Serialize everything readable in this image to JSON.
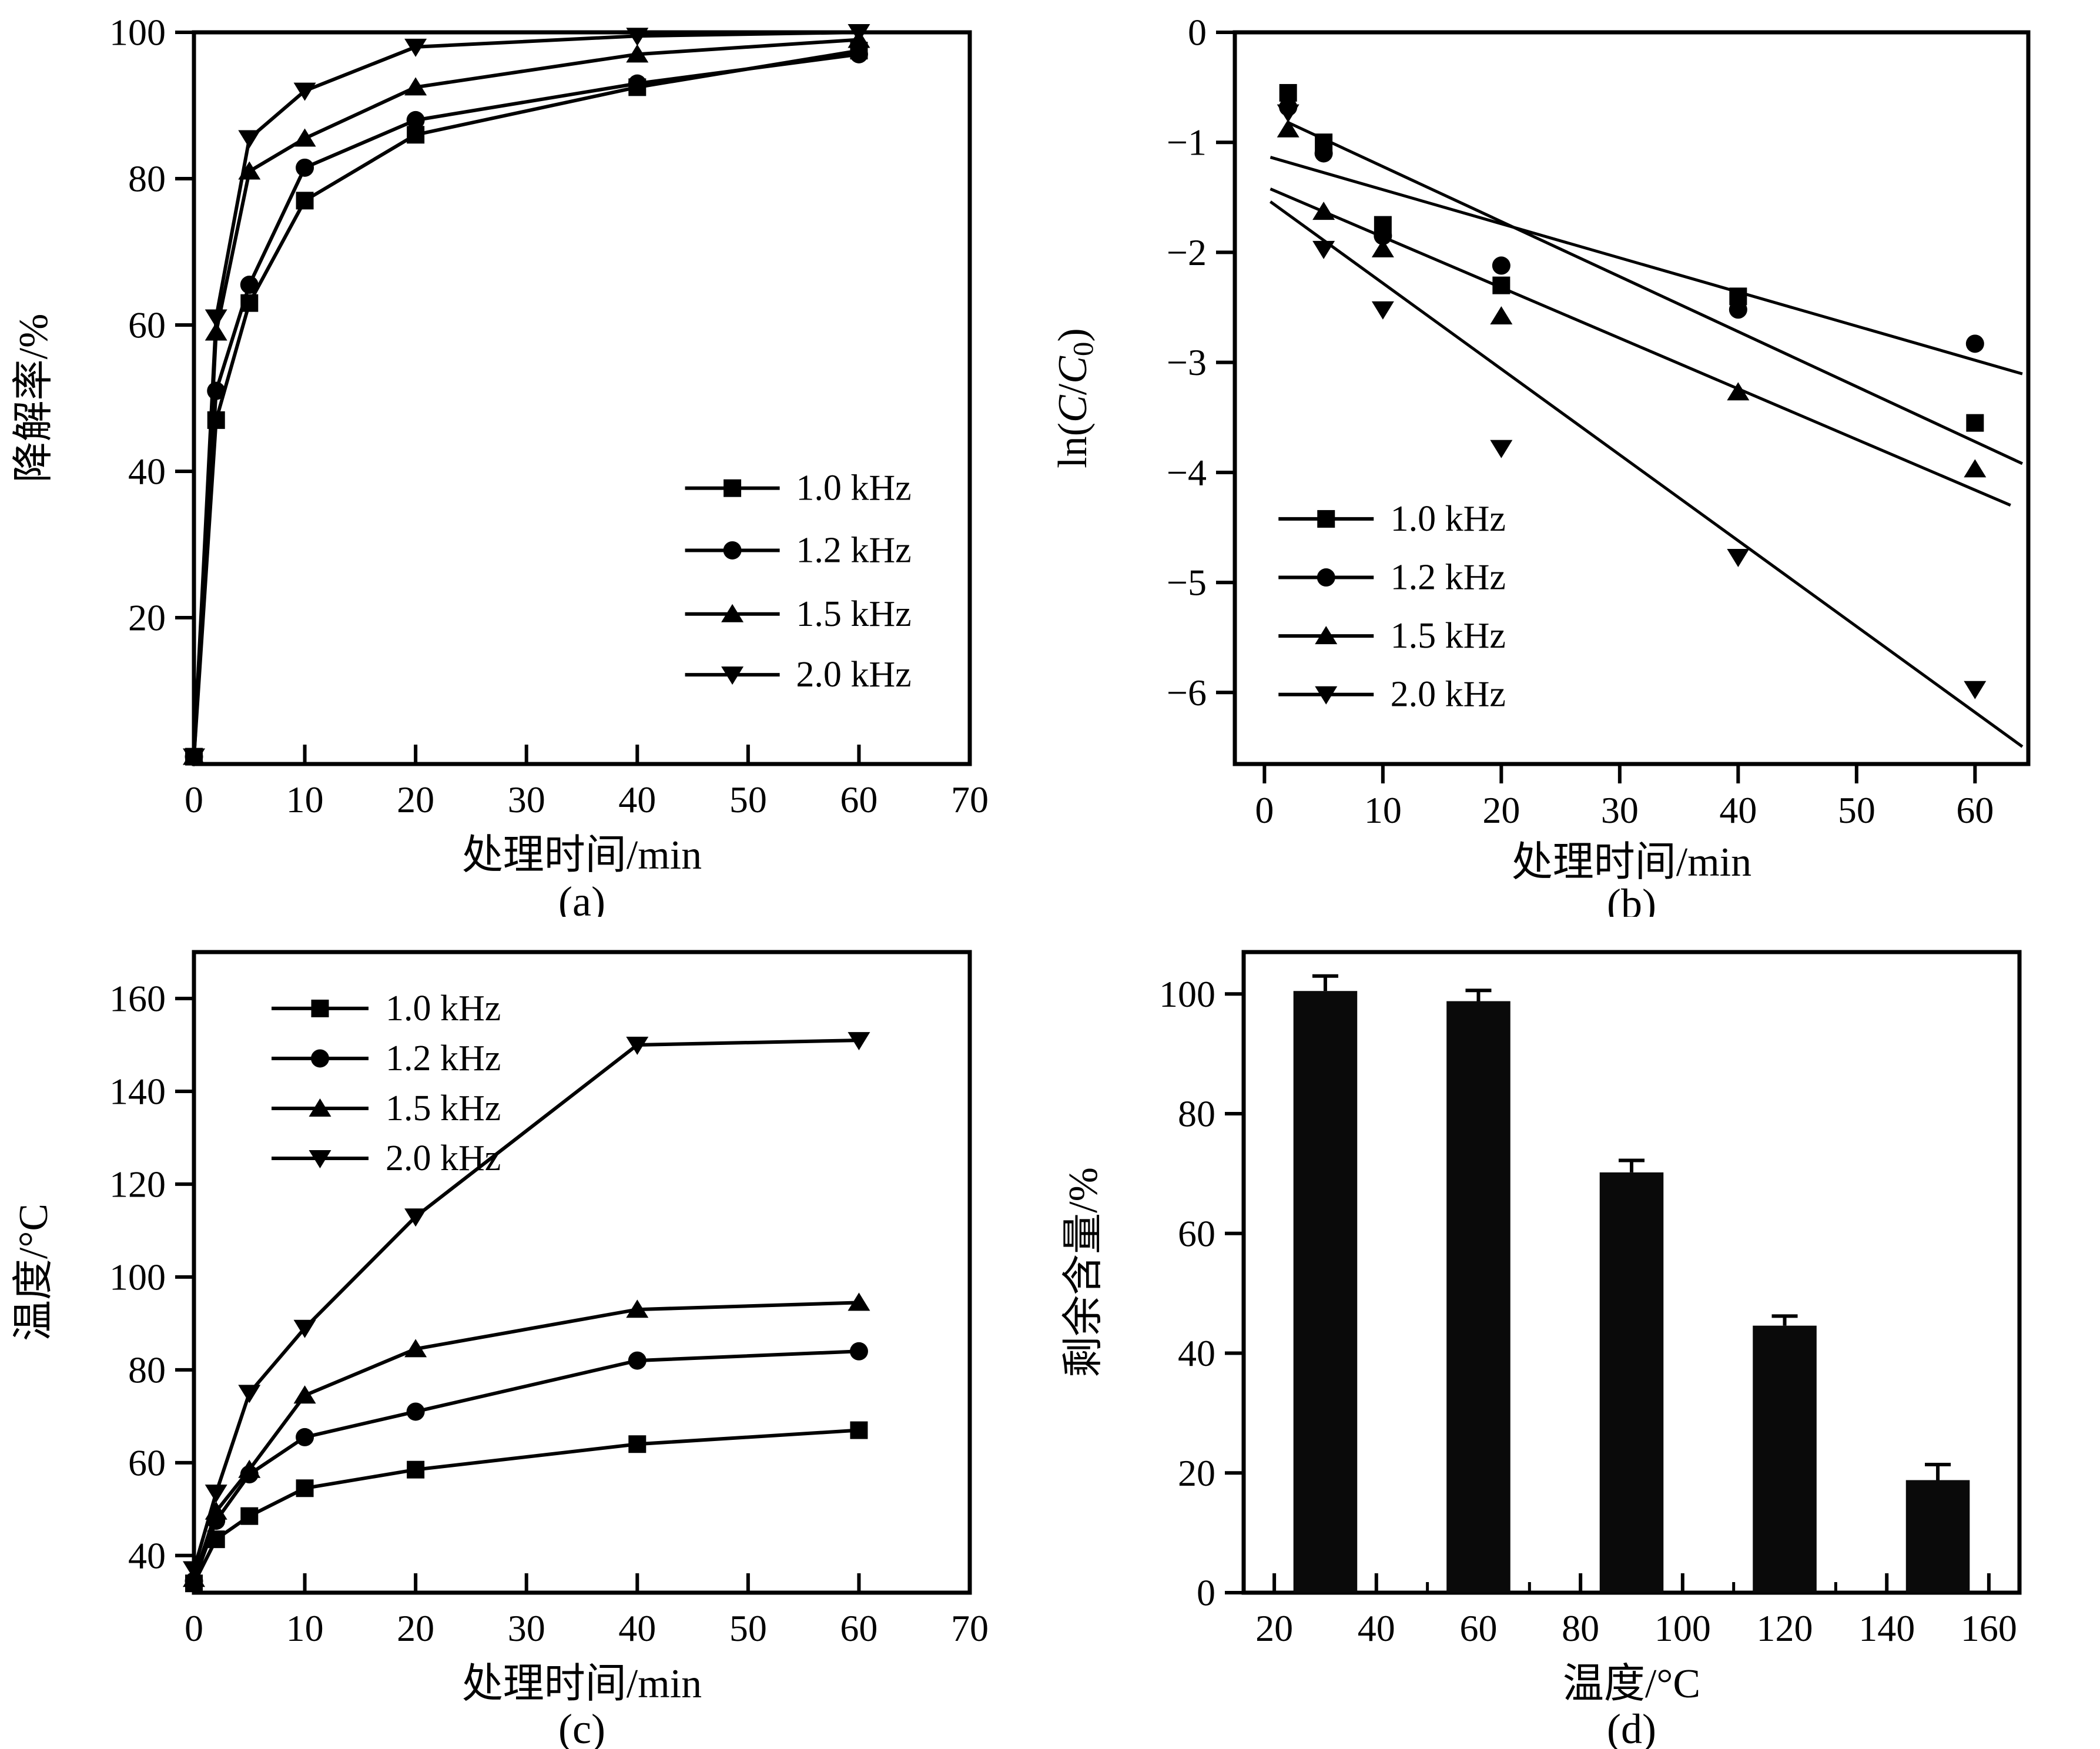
{
  "figure": {
    "background": "#ffffff",
    "foreground": "#000000",
    "series_labels": [
      "1.0 kHz",
      "1.2 kHz",
      "1.5 kHz",
      "2.0 kHz"
    ],
    "panel_labels": [
      "(a)",
      "(b)",
      "(c)",
      "(d)"
    ]
  },
  "chart_data": [
    {
      "id": "a",
      "type": "line",
      "panel_label": "(a)",
      "xlabel": "处理时间/min",
      "ylabel": "降解率/%",
      "xlim": [
        0,
        70
      ],
      "ylim": [
        0,
        100
      ],
      "xticks": [
        0,
        10,
        20,
        30,
        40,
        50,
        60,
        70
      ],
      "yticks": [
        20,
        40,
        60,
        80,
        100
      ],
      "grid": false,
      "legend_position": "center-right",
      "x": [
        0,
        2,
        5,
        10,
        20,
        40,
        60
      ],
      "series": [
        {
          "name": "1.0 kHz",
          "marker": "square",
          "values": [
            1,
            47,
            63,
            77,
            86,
            92.5,
            97.5
          ]
        },
        {
          "name": "1.2 kHz",
          "marker": "circle",
          "values": [
            1,
            51,
            65.5,
            81.5,
            88,
            93,
            97
          ]
        },
        {
          "name": "1.5 kHz",
          "marker": "triangle-up",
          "values": [
            1,
            59,
            81,
            85.5,
            92.5,
            97,
            99
          ]
        },
        {
          "name": "2.0 kHz",
          "marker": "triangle-down",
          "values": [
            1,
            61,
            85.5,
            92,
            98,
            99.5,
            100
          ]
        }
      ]
    },
    {
      "id": "b",
      "type": "scatter-fit",
      "panel_label": "(b)",
      "xlabel": "处理时间/min",
      "ylabel": "ln(C/C0)",
      "ylabel_runs": [
        {
          "t": "ln("
        },
        {
          "t": "C",
          "italic": true
        },
        {
          "t": "/"
        },
        {
          "t": "C",
          "italic": true
        },
        {
          "t": "0",
          "sub": true
        },
        {
          "t": ")"
        }
      ],
      "xlim": [
        -2.5,
        64.5
      ],
      "ylim": [
        -6.65,
        0
      ],
      "xticks": [
        0,
        10,
        20,
        30,
        40,
        50,
        60
      ],
      "yticks": [
        0,
        -1,
        -2,
        -3,
        -4,
        -5,
        -6
      ],
      "grid": false,
      "legend_position": "bottom-left",
      "x": [
        2,
        5,
        10,
        20,
        40,
        60
      ],
      "series": [
        {
          "name": "1.0 kHz",
          "marker": "square",
          "values": [
            -0.55,
            -1.0,
            -1.75,
            -2.3,
            -2.4,
            -3.55
          ],
          "fit": {
            "x0": 2,
            "x1": 64,
            "intercept": -0.72,
            "slope": -0.05
          }
        },
        {
          "name": "1.2 kHz",
          "marker": "circle",
          "values": [
            -0.68,
            -1.1,
            -1.85,
            -2.12,
            -2.52,
            -2.83
          ],
          "fit": {
            "x0": 0.5,
            "x1": 64,
            "intercept": -1.12,
            "slope": -0.031
          }
        },
        {
          "name": "1.5 kHz",
          "marker": "triangle-up",
          "values": [
            -0.88,
            -1.63,
            -1.97,
            -2.58,
            -3.27,
            -3.97
          ],
          "fit": {
            "x0": 0.5,
            "x1": 63,
            "intercept": -1.4,
            "slope": -0.046
          }
        },
        {
          "name": "2.0 kHz",
          "marker": "triangle-down",
          "values": [
            -0.73,
            -1.97,
            -2.52,
            -3.78,
            -4.77,
            -5.97
          ],
          "fit": {
            "x0": 0.5,
            "x1": 64,
            "intercept": -1.5,
            "slope": -0.078
          }
        }
      ]
    },
    {
      "id": "c",
      "type": "line",
      "panel_label": "(c)",
      "xlabel": "处理时间/min",
      "ylabel": "温度/°C",
      "xlim": [
        0,
        70
      ],
      "ylim": [
        32,
        170
      ],
      "xticks": [
        0,
        10,
        20,
        30,
        40,
        50,
        60,
        70
      ],
      "yticks": [
        40,
        60,
        80,
        100,
        120,
        140,
        160
      ],
      "grid": false,
      "legend_position": "top-left",
      "x": [
        0,
        2,
        5,
        10,
        20,
        40,
        60
      ],
      "series": [
        {
          "name": "1.0 kHz",
          "marker": "square",
          "values": [
            34,
            43.5,
            48.5,
            54.5,
            58.5,
            64,
            67
          ]
        },
        {
          "name": "1.2 kHz",
          "marker": "circle",
          "values": [
            34.5,
            47.5,
            57.5,
            65.5,
            71,
            82,
            84
          ]
        },
        {
          "name": "1.5 kHz",
          "marker": "triangle-up",
          "values": [
            35,
            49.5,
            58.5,
            74.5,
            84.5,
            93,
            94.5
          ]
        },
        {
          "name": "2.0 kHz",
          "marker": "triangle-down",
          "values": [
            37,
            53.5,
            75,
            89,
            113,
            150,
            151
          ]
        }
      ]
    },
    {
      "id": "d",
      "type": "bar",
      "panel_label": "(d)",
      "xlabel": "温度/°C",
      "ylabel": "剩余含量/%",
      "xlim": [
        14,
        166
      ],
      "ylim": [
        0,
        107
      ],
      "xticks": [
        20,
        40,
        60,
        80,
        100,
        120,
        140,
        160
      ],
      "xticks_minor": [
        30,
        50,
        70,
        90,
        110,
        130,
        150
      ],
      "yticks": [
        0,
        20,
        40,
        60,
        80,
        100
      ],
      "grid": false,
      "bar_centers": [
        30,
        60,
        90,
        120,
        150
      ],
      "categories": [
        "30",
        "60",
        "90",
        "120",
        "150"
      ],
      "bar_width": 12.5,
      "values": [
        100.5,
        98.8,
        70.2,
        44.6,
        18.8
      ],
      "errors": [
        2.5,
        1.8,
        2.0,
        1.6,
        2.6
      ],
      "bar_color": "#0a0a0a"
    }
  ]
}
